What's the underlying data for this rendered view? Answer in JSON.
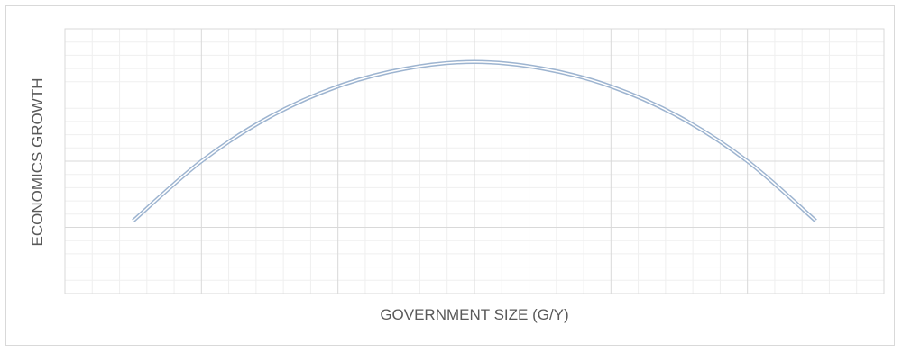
{
  "chart_data": {
    "type": "line",
    "title": "",
    "xlabel": "GOVERNMENT SIZE (G/Y)",
    "ylabel": "ECONOMICS GROWTH",
    "xlim": [
      0,
      6
    ],
    "ylim": [
      0,
      4
    ],
    "grid": true,
    "legend": "none",
    "series": [
      {
        "x": [
          0.5,
          1.0,
          1.5,
          2.0,
          2.5,
          3.0,
          3.5,
          4.0,
          4.5,
          5.0,
          5.5
        ],
        "y": [
          1.1,
          2.0,
          2.67,
          3.13,
          3.4,
          3.5,
          3.4,
          3.13,
          2.67,
          2.0,
          1.1
        ]
      }
    ],
    "colors": {
      "line_outer": "#9db4d0",
      "line_inner": "#ffffff",
      "grid_major": "#d9d9d9",
      "grid_minor": "#efefef",
      "text": "#595959"
    }
  }
}
